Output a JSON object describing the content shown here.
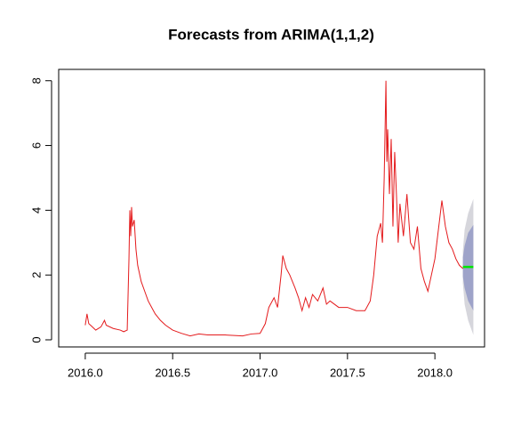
{
  "chart_data": {
    "type": "line",
    "title": "Forecasts from ARIMA(1,1,2)",
    "xlim": [
      2015.848,
      2018.284
    ],
    "ylim": [
      -0.22,
      8.35
    ],
    "xticks": [
      {
        "value": 2016,
        "label": "2016.0"
      },
      {
        "value": 2016.5,
        "label": "2016.5"
      },
      {
        "value": 2017,
        "label": "2017.0"
      },
      {
        "value": 2017.5,
        "label": "2017.5"
      },
      {
        "value": 2018,
        "label": "2018.0"
      }
    ],
    "yticks": [
      0,
      2,
      4,
      6,
      8
    ],
    "x": [
      2016.0,
      2016.01,
      2016.02,
      2016.04,
      2016.06,
      2016.09,
      2016.11,
      2016.12,
      2016.16,
      2016.2,
      2016.22,
      2016.24,
      2016.25,
      2016.255,
      2016.26,
      2016.265,
      2016.27,
      2016.28,
      2016.29,
      2016.3,
      2016.32,
      2016.34,
      2016.36,
      2016.38,
      2016.4,
      2016.43,
      2016.46,
      2016.5,
      2016.55,
      2016.6,
      2016.65,
      2016.7,
      2016.8,
      2016.9,
      2016.95,
      2017.0,
      2017.03,
      2017.05,
      2017.08,
      2017.1,
      2017.12,
      2017.13,
      2017.15,
      2017.17,
      2017.2,
      2017.22,
      2017.24,
      2017.26,
      2017.28,
      2017.3,
      2017.33,
      2017.36,
      2017.38,
      2017.4,
      2017.45,
      2017.5,
      2017.55,
      2017.6,
      2017.63,
      2017.65,
      2017.67,
      2017.69,
      2017.7,
      2017.71,
      2017.72,
      2017.725,
      2017.73,
      2017.74,
      2017.75,
      2017.76,
      2017.77,
      2017.78,
      2017.79,
      2017.8,
      2017.82,
      2017.84,
      2017.86,
      2017.88,
      2017.9,
      2017.92,
      2017.94,
      2017.96,
      2017.98,
      2018.0,
      2018.02,
      2018.04,
      2018.06,
      2018.08,
      2018.1,
      2018.12,
      2018.14,
      2018.16
    ],
    "series": [
      {
        "color": "#e41a1c",
        "values": [
          0.45,
          0.8,
          0.5,
          0.4,
          0.3,
          0.4,
          0.6,
          0.45,
          0.35,
          0.3,
          0.25,
          0.3,
          2.5,
          4.0,
          3.2,
          4.1,
          3.5,
          3.7,
          2.8,
          2.3,
          1.8,
          1.5,
          1.2,
          1.0,
          0.8,
          0.6,
          0.45,
          0.3,
          0.2,
          0.12,
          0.18,
          0.15,
          0.15,
          0.12,
          0.18,
          0.2,
          0.5,
          1.0,
          1.3,
          1.0,
          2.0,
          2.6,
          2.2,
          2.0,
          1.6,
          1.3,
          0.9,
          1.3,
          1.0,
          1.4,
          1.2,
          1.6,
          1.1,
          1.2,
          1.0,
          1.0,
          0.9,
          0.9,
          1.2,
          2.0,
          3.2,
          3.6,
          3.0,
          5.0,
          8.0,
          5.5,
          6.5,
          4.5,
          6.2,
          3.5,
          5.8,
          4.5,
          3.0,
          4.2,
          3.2,
          4.5,
          3.0,
          2.8,
          3.5,
          2.2,
          1.8,
          1.5,
          2.0,
          2.5,
          3.4,
          4.3,
          3.5,
          3.0,
          2.8,
          2.5,
          2.3,
          2.2
        ]
      }
    ],
    "forecast": {
      "x": [
        2018.16,
        2018.17,
        2018.19,
        2018.22
      ],
      "mean": [
        2.25,
        2.25,
        2.25,
        2.25
      ],
      "lower80": [
        1.95,
        1.6,
        1.2,
        0.9
      ],
      "upper80": [
        2.55,
        2.9,
        3.3,
        3.55
      ],
      "lower95": [
        1.75,
        1.1,
        0.6,
        0.15
      ],
      "upper95": [
        2.75,
        3.4,
        3.9,
        4.35
      ],
      "color": "#00e600",
      "color80": "#9ea3c9",
      "color95": "#d6d6dc"
    }
  }
}
